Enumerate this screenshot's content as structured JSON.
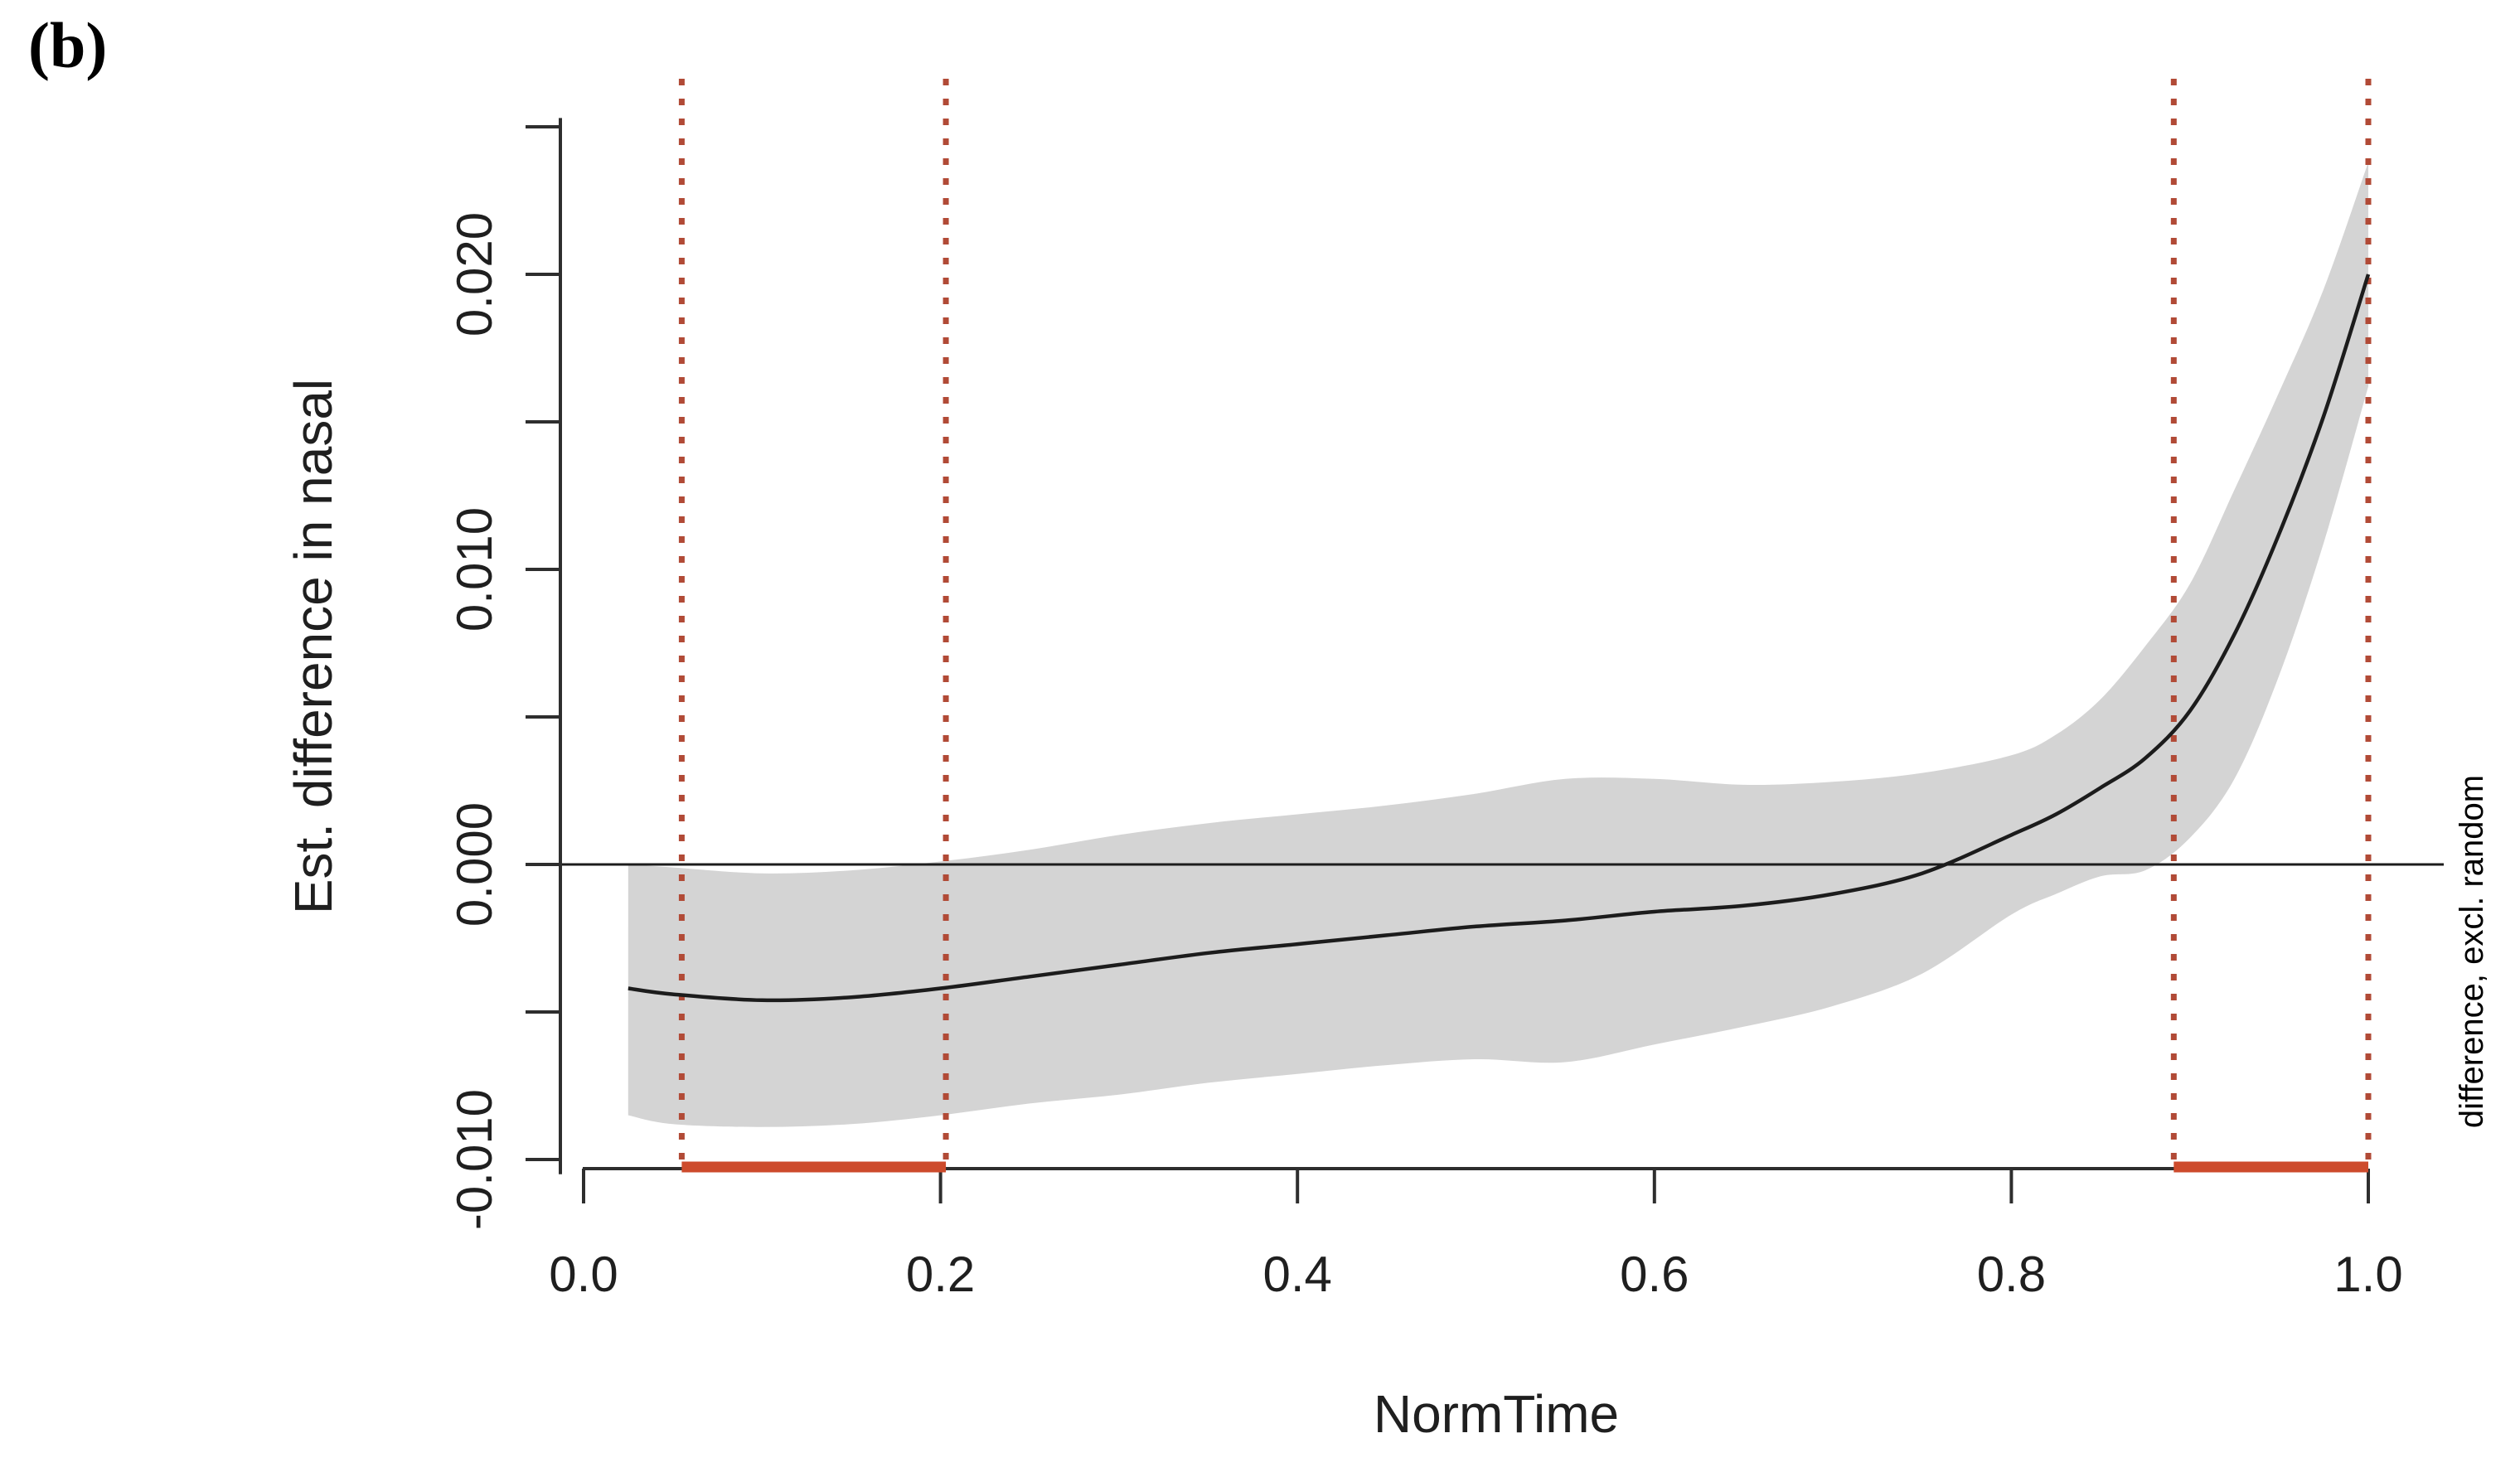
{
  "page": {
    "background": "#ffffff",
    "panel_label": "(b)"
  },
  "chart_data": {
    "type": "line",
    "title": "",
    "xlabel": "NormTime",
    "ylabel": "Est. difference in nasal",
    "right_label": "difference, excl. random",
    "x": [
      0.025,
      0.05,
      0.1,
      0.15,
      0.2,
      0.25,
      0.3,
      0.35,
      0.4,
      0.45,
      0.5,
      0.55,
      0.6,
      0.65,
      0.7,
      0.75,
      0.8,
      0.825,
      0.85,
      0.875,
      0.9,
      0.925,
      0.95,
      0.975,
      1.0
    ],
    "series": [
      {
        "name": "estimated difference",
        "values": [
          -0.0042,
          -0.0044,
          -0.0046,
          -0.0045,
          -0.0042,
          -0.0038,
          -0.0034,
          -0.003,
          -0.0027,
          -0.0024,
          -0.0021,
          -0.0019,
          -0.0016,
          -0.0014,
          -0.001,
          -0.0003,
          0.001,
          0.0017,
          0.0026,
          0.0036,
          0.0052,
          0.0078,
          0.0112,
          0.0152,
          0.02
        ]
      }
    ],
    "ci_upper": [
      0.0,
      -0.0001,
      -0.0003,
      -0.0002,
      0.0001,
      0.0005,
      0.001,
      0.0014,
      0.0017,
      0.002,
      0.0024,
      0.0029,
      0.0029,
      0.0027,
      0.0028,
      0.0031,
      0.0037,
      0.0044,
      0.0056,
      0.0074,
      0.0095,
      0.0127,
      0.016,
      0.0195,
      0.0238
    ],
    "ci_lower": [
      -0.0085,
      -0.0088,
      -0.0089,
      -0.0088,
      -0.0085,
      -0.0081,
      -0.0078,
      -0.0074,
      -0.0071,
      -0.0068,
      -0.0066,
      -0.0067,
      -0.0061,
      -0.0055,
      -0.0048,
      -0.0037,
      -0.0017,
      -0.001,
      -0.0004,
      -0.0002,
      0.0009,
      0.0029,
      0.0064,
      0.0109,
      0.0162
    ],
    "x_ticks": [
      0.0,
      0.2,
      0.4,
      0.6,
      0.8,
      1.0
    ],
    "x_tick_labels": [
      "0.0",
      "0.2",
      "0.4",
      "0.6",
      "0.8",
      "1.0"
    ],
    "y_ticks": [
      -0.01,
      -0.005,
      0.0,
      0.005,
      0.01,
      0.015,
      0.02,
      0.025
    ],
    "y_tick_labels": [
      "-0.010",
      "",
      "0.000",
      "",
      "0.010",
      "",
      "0.020",
      ""
    ],
    "xlim": [
      0.0,
      1.0
    ],
    "ylim": [
      -0.0105,
      0.0253
    ],
    "grid": false,
    "legend": "none",
    "zero_line": 0.0,
    "significant_regions": [
      {
        "start": 0.055,
        "end": 0.203
      },
      {
        "start": 0.891,
        "end": 1.0
      }
    ],
    "colors": {
      "band": "#d4d4d4",
      "estimate_line": "#1c1c1c",
      "zero_line": "#1c1c1c",
      "axis": "#2e2e2e",
      "sig_segment": "#cd4b2c",
      "sig_dotted": "#b14a36",
      "side_label": "#7c7c7c"
    }
  }
}
